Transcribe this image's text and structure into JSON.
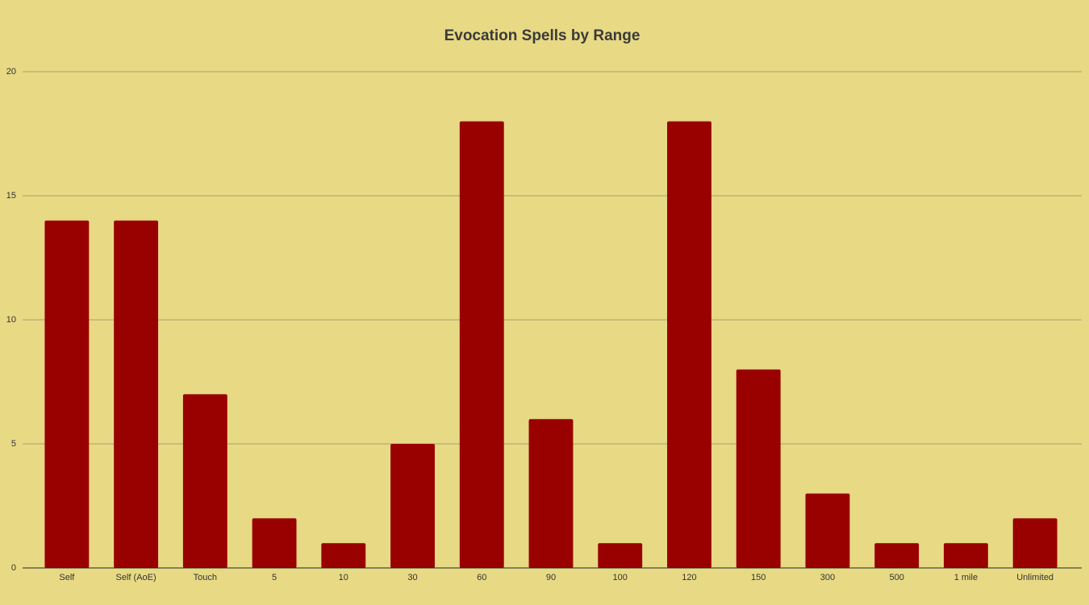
{
  "chart_data": {
    "type": "bar",
    "title": "Evocation Spells by Range",
    "categories": [
      "Self",
      "Self (AoE)",
      "Touch",
      "5",
      "10",
      "30",
      "60",
      "90",
      "100",
      "120",
      "150",
      "300",
      "500",
      "1 mile",
      "Unlimited"
    ],
    "values": [
      14,
      14,
      7,
      2,
      1,
      5,
      18,
      6,
      1,
      18,
      8,
      3,
      1,
      1,
      2
    ],
    "color": "#990000",
    "ylim": [
      0,
      20
    ],
    "yticks": [
      0,
      5,
      10,
      15,
      20
    ],
    "grid": true
  }
}
